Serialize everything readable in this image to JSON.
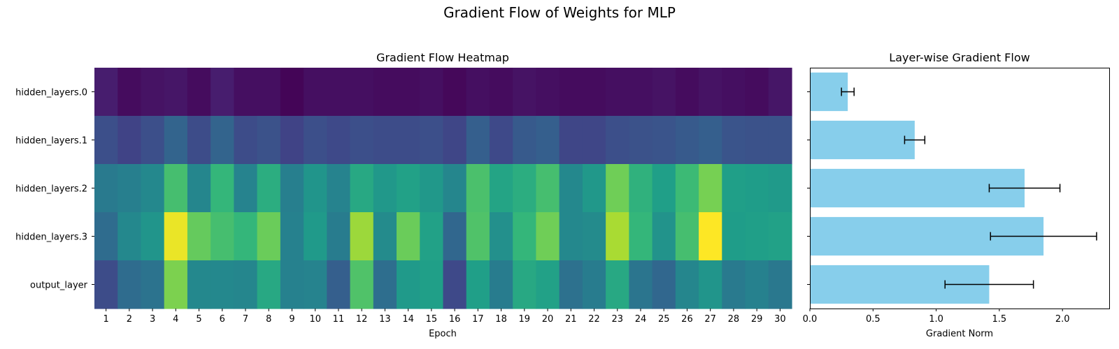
{
  "title": "Gradient Flow of Weights for MLP",
  "chart_data": [
    {
      "type": "heatmap",
      "title": "Gradient Flow Heatmap",
      "xlabel": "Epoch",
      "ylabel": "",
      "colormap": "viridis",
      "x": [
        "1",
        "2",
        "3",
        "4",
        "5",
        "6",
        "7",
        "8",
        "9",
        "10",
        "11",
        "12",
        "13",
        "14",
        "15",
        "16",
        "17",
        "18",
        "19",
        "20",
        "21",
        "22",
        "23",
        "24",
        "25",
        "26",
        "27",
        "28",
        "29",
        "30"
      ],
      "y": [
        "hidden_layers.0",
        "hidden_layers.1",
        "hidden_layers.2",
        "hidden_layers.3",
        "output_layer"
      ],
      "value_range": [
        0,
        1
      ],
      "values": [
        [
          0.08,
          0.03,
          0.05,
          0.06,
          0.03,
          0.08,
          0.04,
          0.04,
          0.01,
          0.04,
          0.04,
          0.04,
          0.03,
          0.03,
          0.04,
          0.02,
          0.04,
          0.03,
          0.05,
          0.04,
          0.03,
          0.03,
          0.04,
          0.04,
          0.05,
          0.03,
          0.05,
          0.04,
          0.03,
          0.06
        ],
        [
          0.24,
          0.2,
          0.24,
          0.32,
          0.23,
          0.32,
          0.23,
          0.25,
          0.2,
          0.24,
          0.22,
          0.24,
          0.23,
          0.23,
          0.24,
          0.21,
          0.3,
          0.22,
          0.28,
          0.3,
          0.21,
          0.21,
          0.24,
          0.25,
          0.26,
          0.28,
          0.3,
          0.26,
          0.25,
          0.25
        ],
        [
          0.41,
          0.43,
          0.47,
          0.7,
          0.46,
          0.66,
          0.45,
          0.62,
          0.43,
          0.52,
          0.45,
          0.6,
          0.53,
          0.57,
          0.53,
          0.46,
          0.71,
          0.58,
          0.62,
          0.7,
          0.47,
          0.53,
          0.78,
          0.64,
          0.56,
          0.68,
          0.79,
          0.56,
          0.55,
          0.54
        ],
        [
          0.35,
          0.47,
          0.52,
          0.97,
          0.76,
          0.7,
          0.66,
          0.77,
          0.44,
          0.54,
          0.42,
          0.85,
          0.48,
          0.77,
          0.57,
          0.33,
          0.72,
          0.5,
          0.66,
          0.78,
          0.47,
          0.48,
          0.87,
          0.66,
          0.51,
          0.7,
          1.0,
          0.55,
          0.56,
          0.57
        ],
        [
          0.23,
          0.35,
          0.38,
          0.8,
          0.47,
          0.47,
          0.46,
          0.6,
          0.44,
          0.45,
          0.3,
          0.72,
          0.36,
          0.54,
          0.56,
          0.22,
          0.56,
          0.42,
          0.6,
          0.57,
          0.37,
          0.42,
          0.6,
          0.39,
          0.33,
          0.46,
          0.52,
          0.41,
          0.44,
          0.4
        ]
      ]
    },
    {
      "type": "bar",
      "orientation": "horizontal",
      "title": "Layer-wise Gradient Flow",
      "xlabel": "Gradient Norm",
      "ylabel": "",
      "categories": [
        "hidden_layers.0",
        "hidden_layers.1",
        "hidden_layers.2",
        "hidden_layers.3",
        "output_layer"
      ],
      "values": [
        0.3,
        0.83,
        1.7,
        1.85,
        1.42
      ],
      "errors": [
        0.05,
        0.08,
        0.28,
        0.42,
        0.35
      ],
      "xlim": [
        0,
        2.37
      ],
      "xticks": [
        "0.0",
        "0.5",
        "1.0",
        "1.5",
        "2.0"
      ],
      "bar_color": "#87ceeb",
      "error_color": "#000000",
      "grid": false
    }
  ]
}
